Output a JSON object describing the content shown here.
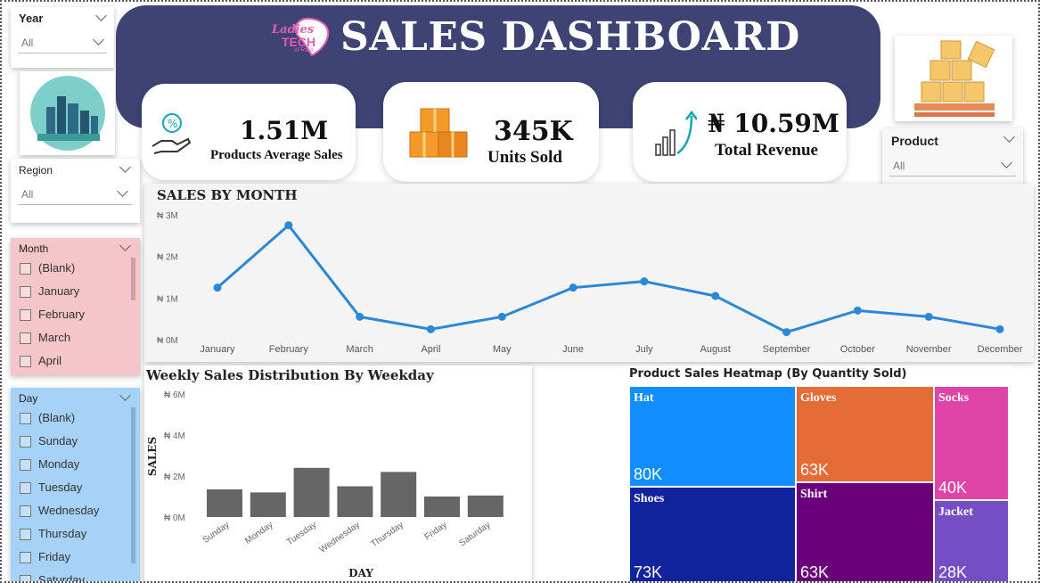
{
  "header": {
    "title": "SALES DASHBOARD",
    "logo": {
      "line1": "Ladies",
      "line2": "TECH",
      "line3": "AFRICA",
      "color": "#e05fb4"
    }
  },
  "slicers": {
    "year": {
      "title": "Year",
      "value": "All"
    },
    "region": {
      "title": "Region",
      "value": "All"
    },
    "product": {
      "title": "Product",
      "value": "All"
    },
    "month": {
      "title": "Month",
      "bg": "#f4c6c9",
      "items": [
        "(Blank)",
        "January",
        "February",
        "March",
        "April"
      ]
    },
    "day": {
      "title": "Day",
      "bg": "#a6d2f7",
      "items": [
        "(Blank)",
        "Sunday",
        "Monday",
        "Tuesday",
        "Wednesday",
        "Thursday",
        "Friday",
        "Saturday"
      ]
    }
  },
  "kpis": {
    "avg_sales": {
      "value": "1.51M",
      "label": "Products Average Sales",
      "icon": "hand-coin-icon"
    },
    "units_sold": {
      "value": "345K",
      "label": "Units Sold",
      "icon": "boxes-icon"
    },
    "revenue": {
      "value": "₦ 10.59M",
      "label": "Total Revenue",
      "icon": "growth-chart-icon"
    }
  },
  "chart_data": [
    {
      "type": "line",
      "title": "SALES BY MONTH",
      "categories": [
        "January",
        "February",
        "March",
        "April",
        "May",
        "June",
        "July",
        "August",
        "September",
        "October",
        "November",
        "December"
      ],
      "values": [
        1.25,
        2.75,
        0.55,
        0.25,
        0.55,
        1.25,
        1.4,
        1.05,
        0.18,
        0.7,
        0.55,
        0.25
      ],
      "value_unit": "million naira",
      "yticks": [
        "₦ 0M",
        "₦ 1M",
        "₦ 2M",
        "₦ 3M"
      ],
      "ylim": [
        0,
        3
      ],
      "color": "#2b88d8",
      "grid": false
    },
    {
      "type": "bar",
      "title": "Weekly Sales Distribution By Weekday",
      "categories": [
        "Sunday",
        "Monday",
        "Tuesday",
        "Wednesday",
        "Thursday",
        "Friday",
        "Saturday"
      ],
      "values": [
        1.35,
        1.2,
        2.4,
        1.5,
        2.2,
        1.0,
        1.05
      ],
      "value_unit": "million naira",
      "xlabel": "DAY",
      "ylabel": "SALES",
      "yticks": [
        "₦ 0M",
        "₦ 2M",
        "₦ 4M",
        "₦ 6M"
      ],
      "ylim": [
        0,
        6
      ],
      "color": "#666666"
    },
    {
      "type": "heatmap",
      "title": "Product Sales Heatmap (By Quantity Sold)",
      "items": [
        {
          "name": "Hat",
          "label": "80K",
          "value": 80,
          "color": "#118dff"
        },
        {
          "name": "Shoes",
          "label": "73K",
          "value": 73,
          "color": "#12239e"
        },
        {
          "name": "Gloves",
          "label": "63K",
          "value": 63,
          "color": "#e66c37"
        },
        {
          "name": "Shirt",
          "label": "63K",
          "value": 63,
          "color": "#6b007b"
        },
        {
          "name": "Socks",
          "label": "40K",
          "value": 40,
          "color": "#e044a7"
        },
        {
          "name": "Jacket",
          "label": "28K",
          "value": 28,
          "color": "#744ec2"
        }
      ]
    }
  ]
}
